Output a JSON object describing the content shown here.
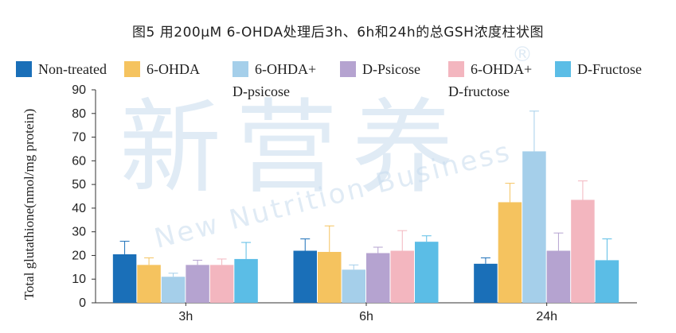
{
  "chart_data": {
    "type": "bar",
    "title": "图5 用200μM 6-OHDA处理后3h、6h和24h的总GSH浓度柱状图",
    "xlabel": "",
    "ylabel": "Total glutathione(nmol/mg protein)",
    "ylim": [
      0,
      90
    ],
    "yticks": [
      0,
      10,
      20,
      30,
      40,
      50,
      60,
      70,
      80,
      90
    ],
    "grid": false,
    "legend_position": "top",
    "categories": [
      "3h",
      "6h",
      "24h"
    ],
    "series": [
      {
        "name": "Non-treated",
        "color": "#1a6fb8",
        "values": [
          20.5,
          22,
          16.5
        ],
        "errors": [
          5.5,
          5,
          2.5
        ]
      },
      {
        "name": "6-OHDA",
        "color": "#f5c35f",
        "values": [
          16,
          21.5,
          42.5
        ],
        "errors": [
          3,
          11,
          8
        ]
      },
      {
        "name": "6-OHDA+\nD-psicose",
        "color": "#a5cfea",
        "values": [
          11,
          14,
          64
        ],
        "errors": [
          1.5,
          2,
          17
        ]
      },
      {
        "name": "D-Psicose",
        "color": "#b5a3d0",
        "values": [
          16,
          21,
          22
        ],
        "errors": [
          2,
          2.5,
          7.5
        ]
      },
      {
        "name": "6-OHDA+\nD-fructose",
        "color": "#f3b6bf",
        "values": [
          16,
          22,
          43.5
        ],
        "errors": [
          2.5,
          8.5,
          8
        ]
      },
      {
        "name": "D-Fructose",
        "color": "#5bbde6",
        "values": [
          18.5,
          25.8,
          18
        ],
        "errors": [
          7,
          2.5,
          9
        ]
      }
    ]
  },
  "watermark": {
    "main": "新营养",
    "sub": "New Nutrition Business",
    "reg": "®"
  }
}
